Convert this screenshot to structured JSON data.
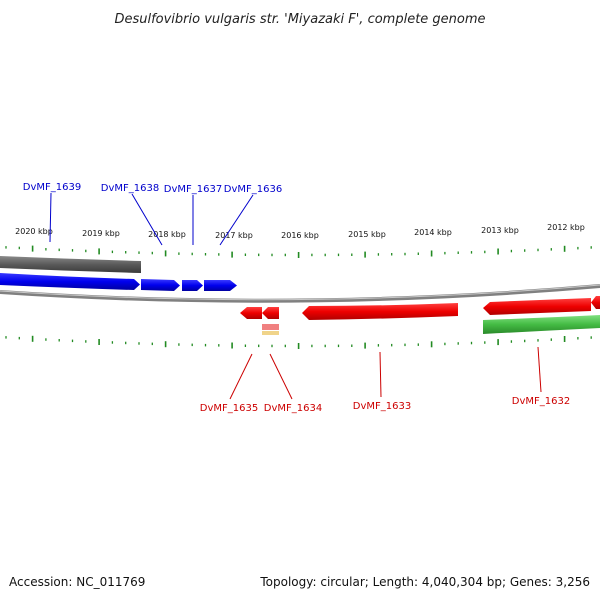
{
  "title": "Desulfovibrio vulgaris str. 'Miyazaki F', complete genome",
  "footer": {
    "accession": "Accession: NC_011769",
    "summary": "Topology: circular; Length: 4,040,304 bp; Genes: 3,256"
  },
  "colors": {
    "forward_gene": "#0000ee",
    "reverse_gene": "#ee0000",
    "backbone": "#808080",
    "tick": "#228b22",
    "rna": "#44bb44"
  },
  "scale_labels": [
    "2020 kbp",
    "2019 kbp",
    "2018 kbp",
    "2017 kbp",
    "2016 kbp",
    "2015 kbp",
    "2014 kbp",
    "2013 kbp",
    "2012 kbp"
  ],
  "forward_genes": [
    "DvMF_1639",
    "DvMF_1638",
    "DvMF_1637",
    "DvMF_1636"
  ],
  "reverse_genes": [
    "DvMF_1635",
    "DvMF_1634",
    "DvMF_1633",
    "DvMF_1632"
  ]
}
